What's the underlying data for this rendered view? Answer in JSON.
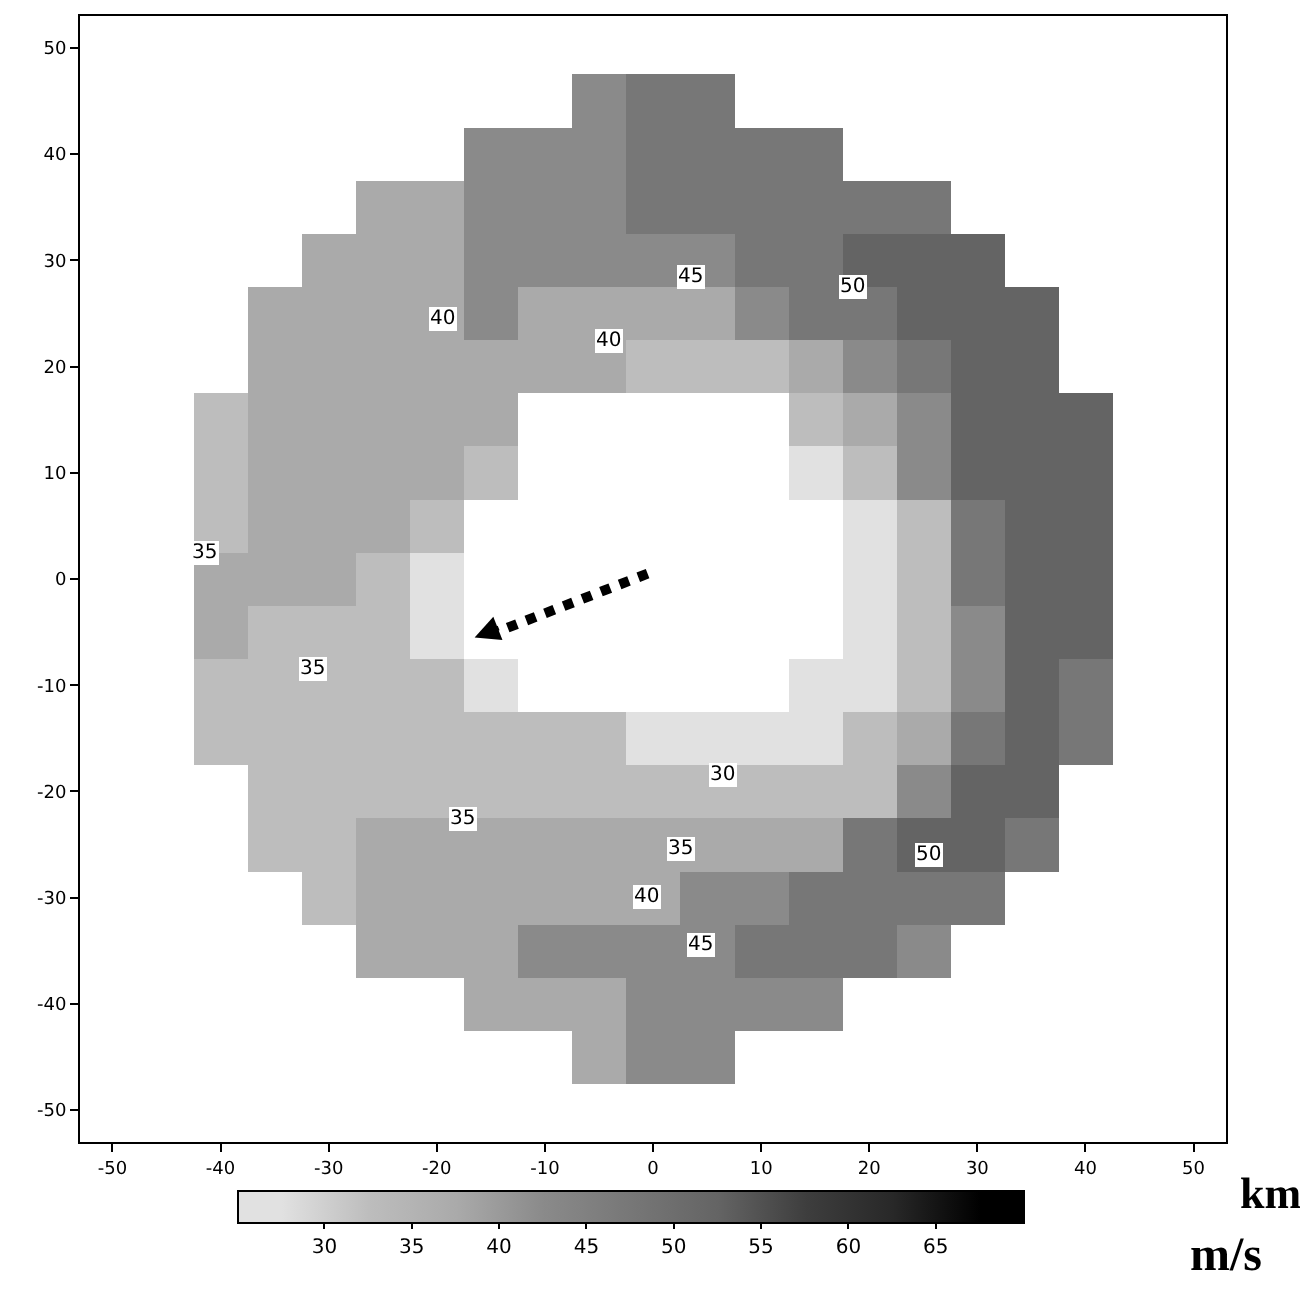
{
  "chart_data": {
    "type": "heatmap",
    "xlabel": "km",
    "clabel": "m/s",
    "categories": [
      "-50",
      null,
      "-40",
      null,
      "-30",
      null,
      "-20",
      null,
      "-10",
      null,
      "0",
      null,
      "10",
      null,
      "20",
      null,
      "30",
      null,
      "40",
      null,
      "50"
    ],
    "y_categories": [
      "50",
      null,
      "40",
      null,
      "30",
      null,
      "20",
      null,
      "10",
      null,
      "0",
      null,
      "-10",
      null,
      "-20",
      null,
      "-30",
      null,
      "-40",
      null,
      "-50"
    ],
    "cells": [
      [
        null,
        null,
        null,
        null,
        null,
        null,
        null,
        null,
        null,
        null,
        null,
        null,
        null,
        null,
        null,
        null,
        null,
        null,
        null,
        null,
        null
      ],
      [
        null,
        null,
        null,
        null,
        null,
        null,
        null,
        null,
        null,
        42.5,
        47.5,
        47.5,
        null,
        null,
        null,
        null,
        null,
        null,
        null,
        null,
        null
      ],
      [
        null,
        null,
        null,
        null,
        null,
        null,
        null,
        42.5,
        42.5,
        42.5,
        47.5,
        47.5,
        47.5,
        47.5,
        null,
        null,
        null,
        null,
        null,
        null,
        null
      ],
      [
        null,
        null,
        null,
        null,
        null,
        37.5,
        37.5,
        42.5,
        42.5,
        42.5,
        47.5,
        47.5,
        47.5,
        47.5,
        47.5,
        47.5,
        null,
        null,
        null,
        null,
        null
      ],
      [
        null,
        null,
        null,
        null,
        37.5,
        37.5,
        37.5,
        42.5,
        42.5,
        42.5,
        42.5,
        42.5,
        47.5,
        47.5,
        52.5,
        52.5,
        52.5,
        null,
        null,
        null,
        null
      ],
      [
        null,
        null,
        null,
        37.5,
        37.5,
        37.5,
        37.5,
        42.5,
        37.5,
        37.5,
        37.5,
        37.5,
        42.5,
        47.5,
        47.5,
        52.5,
        52.5,
        52.5,
        null,
        null,
        null
      ],
      [
        null,
        null,
        null,
        37.5,
        37.5,
        37.5,
        37.5,
        37.5,
        37.5,
        37.5,
        32.5,
        32.5,
        32.5,
        37.5,
        42.5,
        47.5,
        52.5,
        52.5,
        null,
        null,
        null
      ],
      [
        null,
        null,
        32.5,
        37.5,
        37.5,
        37.5,
        37.5,
        37.5,
        null,
        null,
        null,
        null,
        null,
        32.5,
        37.5,
        42.5,
        52.5,
        52.5,
        52.5,
        null,
        null
      ],
      [
        null,
        null,
        32.5,
        37.5,
        37.5,
        37.5,
        37.5,
        32.5,
        null,
        null,
        null,
        null,
        null,
        27.5,
        32.5,
        42.5,
        52.5,
        52.5,
        52.5,
        null,
        null
      ],
      [
        null,
        null,
        32.5,
        37.5,
        37.5,
        37.5,
        32.5,
        null,
        null,
        null,
        null,
        null,
        null,
        null,
        27.5,
        32.5,
        47.5,
        52.5,
        52.5,
        null,
        null
      ],
      [
        null,
        null,
        37.5,
        37.5,
        37.5,
        32.5,
        27.5,
        null,
        null,
        null,
        null,
        null,
        null,
        null,
        27.5,
        32.5,
        47.5,
        52.5,
        52.5,
        null,
        null
      ],
      [
        null,
        null,
        37.5,
        32.5,
        32.5,
        32.5,
        27.5,
        null,
        null,
        null,
        null,
        null,
        null,
        null,
        27.5,
        32.5,
        42.5,
        52.5,
        52.5,
        null,
        null
      ],
      [
        null,
        null,
        32.5,
        32.5,
        32.5,
        32.5,
        32.5,
        27.5,
        null,
        null,
        null,
        null,
        null,
        27.5,
        27.5,
        32.5,
        42.5,
        52.5,
        47.5,
        null,
        null
      ],
      [
        null,
        null,
        32.5,
        32.5,
        32.5,
        32.5,
        32.5,
        32.5,
        32.5,
        32.5,
        27.5,
        27.5,
        27.5,
        27.5,
        32.5,
        37.5,
        47.5,
        52.5,
        47.5,
        null,
        null
      ],
      [
        null,
        null,
        null,
        32.5,
        32.5,
        32.5,
        32.5,
        32.5,
        32.5,
        32.5,
        32.5,
        32.5,
        32.5,
        32.5,
        32.5,
        42.5,
        52.5,
        52.5,
        null,
        null,
        null
      ],
      [
        null,
        null,
        null,
        32.5,
        32.5,
        37.5,
        37.5,
        37.5,
        37.5,
        37.5,
        37.5,
        37.5,
        37.5,
        37.5,
        47.5,
        52.5,
        52.5,
        47.5,
        null,
        null,
        null
      ],
      [
        null,
        null,
        null,
        null,
        32.5,
        37.5,
        37.5,
        37.5,
        37.5,
        37.5,
        37.5,
        42.5,
        42.5,
        47.5,
        47.5,
        47.5,
        47.5,
        null,
        null,
        null,
        null
      ],
      [
        null,
        null,
        null,
        null,
        null,
        37.5,
        37.5,
        37.5,
        42.5,
        42.5,
        42.5,
        42.5,
        47.5,
        47.5,
        47.5,
        42.5,
        null,
        null,
        null,
        null,
        null
      ],
      [
        null,
        null,
        null,
        null,
        null,
        null,
        null,
        37.5,
        37.5,
        37.5,
        42.5,
        42.5,
        42.5,
        42.5,
        null,
        null,
        null,
        null,
        null,
        null,
        null
      ],
      [
        null,
        null,
        null,
        null,
        null,
        null,
        null,
        null,
        null,
        37.5,
        42.5,
        42.5,
        null,
        null,
        null,
        null,
        null,
        null,
        null,
        null,
        null
      ],
      [
        null,
        null,
        null,
        null,
        null,
        null,
        null,
        null,
        null,
        null,
        null,
        null,
        null,
        null,
        null,
        null,
        null,
        null,
        null,
        null,
        null
      ]
    ],
    "clim": [
      25,
      70
    ],
    "cticks": [
      30,
      35,
      40,
      45,
      50,
      55,
      60,
      65
    ],
    "annotations": [
      "40",
      "40",
      "45",
      "50",
      "35",
      "35",
      "35",
      "30",
      "35",
      "40",
      "45",
      "50"
    ]
  }
}
